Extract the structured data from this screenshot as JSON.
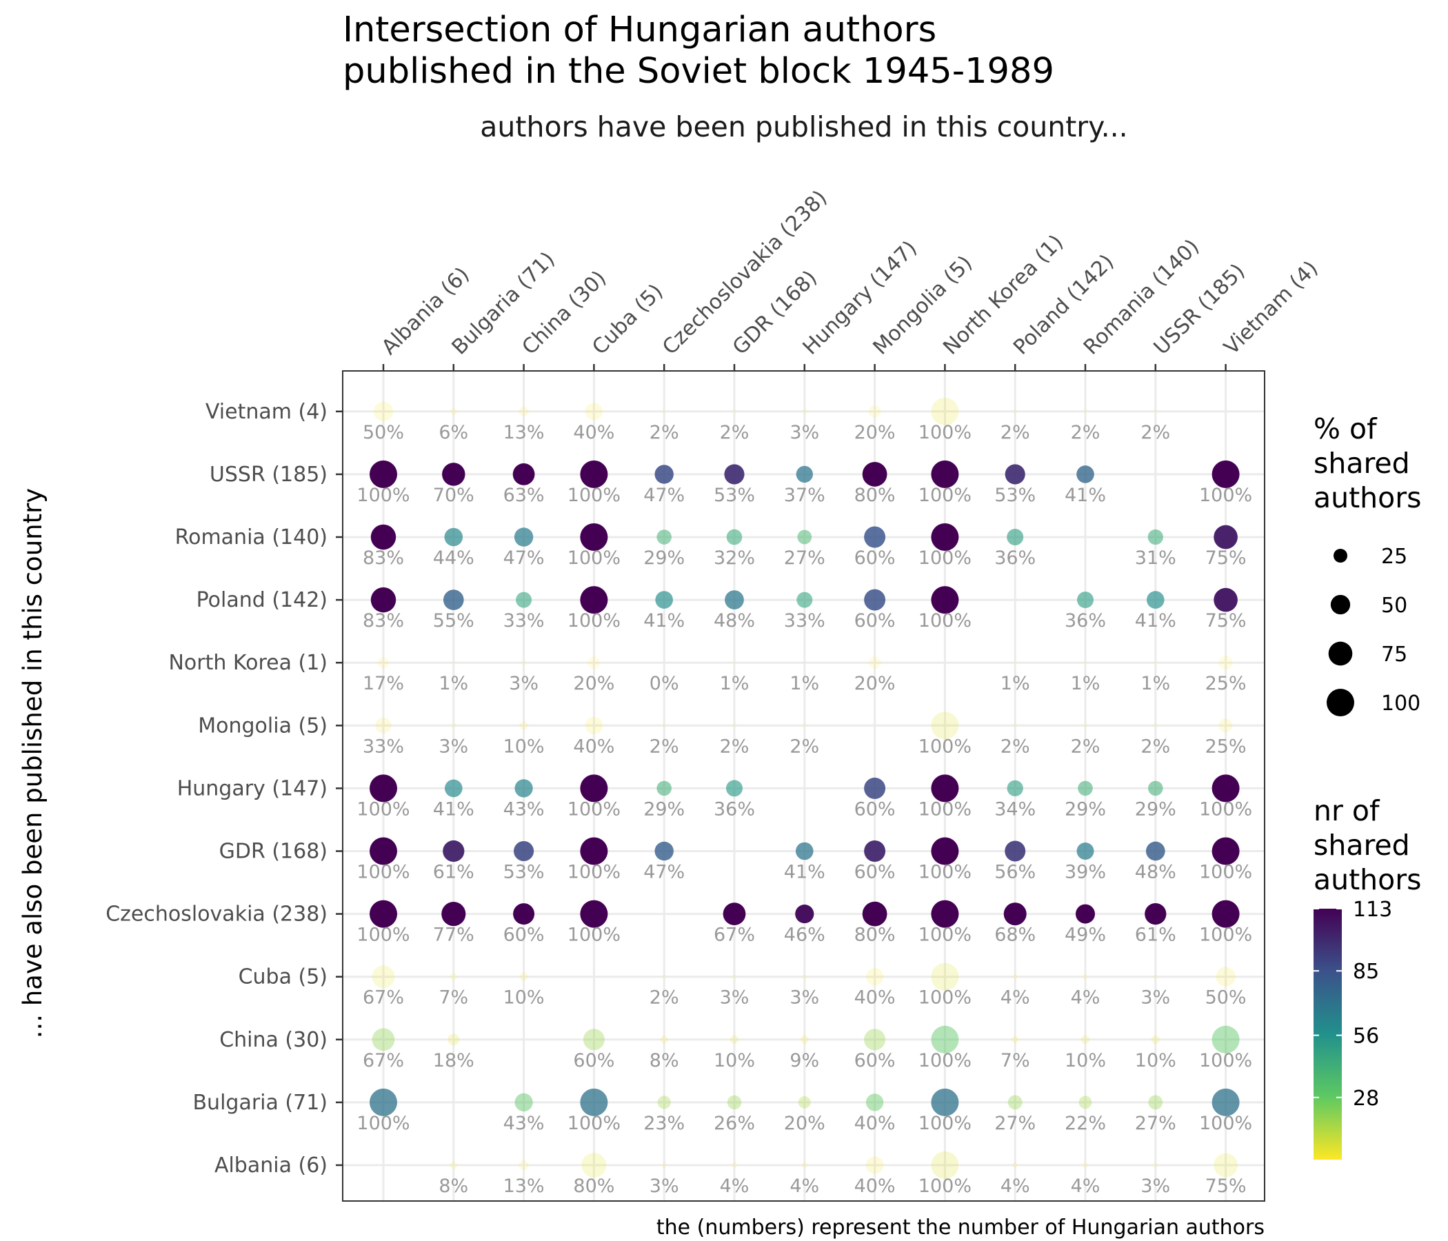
{
  "chart_data": {
    "type": "scatter",
    "title_line1": "Intersection of Hungarian authors",
    "title_line2": "published in the Soviet block 1945-1989",
    "subtitle": "authors have been published in this country...",
    "caption": "the (numbers) represent the number of Hungarian authors",
    "ylabel": "... have also been published in this country",
    "x_categories": [
      "Albania (6)",
      "Bulgaria (71)",
      "China (30)",
      "Cuba (5)",
      "Czechoslovakia (238)",
      "GDR (168)",
      "Hungary (147)",
      "Mongolia (5)",
      "North Korea (1)",
      "Poland (142)",
      "Romania (140)",
      "USSR (185)",
      "Vietnam (4)"
    ],
    "y_categories": [
      "Albania (6)",
      "Bulgaria (71)",
      "China (30)",
      "Cuba (5)",
      "Czechoslovakia (238)",
      "GDR (168)",
      "Hungary (147)",
      "Mongolia (5)",
      "North Korea (1)",
      "Poland (142)",
      "Romania (140)",
      "USSR (185)",
      "Vietnam (4)"
    ],
    "author_counts": [
      6,
      71,
      30,
      5,
      238,
      168,
      147,
      5,
      1,
      142,
      140,
      185,
      4
    ],
    "percent_matrix": [
      [
        null,
        8,
        13,
        80,
        3,
        4,
        4,
        40,
        100,
        4,
        4,
        3,
        75
      ],
      [
        100,
        null,
        43,
        100,
        23,
        26,
        20,
        40,
        100,
        27,
        22,
        27,
        100
      ],
      [
        67,
        18,
        null,
        60,
        8,
        10,
        9,
        60,
        100,
        7,
        10,
        10,
        100
      ],
      [
        67,
        7,
        10,
        null,
        2,
        3,
        3,
        40,
        100,
        4,
        4,
        3,
        50
      ],
      [
        100,
        77,
        60,
        100,
        null,
        67,
        46,
        80,
        100,
        68,
        49,
        61,
        100
      ],
      [
        100,
        61,
        53,
        100,
        47,
        null,
        41,
        60,
        100,
        56,
        39,
        48,
        100
      ],
      [
        100,
        41,
        43,
        100,
        29,
        36,
        null,
        60,
        100,
        34,
        29,
        29,
        100
      ],
      [
        33,
        3,
        10,
        40,
        2,
        2,
        2,
        null,
        100,
        2,
        2,
        2,
        25
      ],
      [
        17,
        1,
        3,
        20,
        0,
        1,
        1,
        20,
        null,
        1,
        1,
        1,
        25
      ],
      [
        83,
        55,
        33,
        100,
        41,
        48,
        33,
        60,
        100,
        null,
        36,
        41,
        75
      ],
      [
        83,
        44,
        47,
        100,
        29,
        32,
        27,
        60,
        100,
        36,
        null,
        31,
        75
      ],
      [
        100,
        70,
        63,
        100,
        47,
        53,
        37,
        80,
        100,
        53,
        41,
        null,
        100
      ],
      [
        50,
        6,
        13,
        40,
        2,
        2,
        3,
        20,
        100,
        2,
        2,
        2,
        null
      ]
    ],
    "size_legend": {
      "title_lines": [
        "% of",
        "shared",
        "authors"
      ],
      "values": [
        25,
        50,
        75,
        100
      ]
    },
    "color_legend": {
      "title_lines": [
        "nr of",
        "shared",
        "authors"
      ],
      "ticks": [
        28,
        56,
        85,
        113
      ],
      "range": [
        0,
        113
      ],
      "colormap": "viridis (reversed: high = dark purple, low = yellow)"
    },
    "grid": true,
    "legend_placement": "right"
  }
}
